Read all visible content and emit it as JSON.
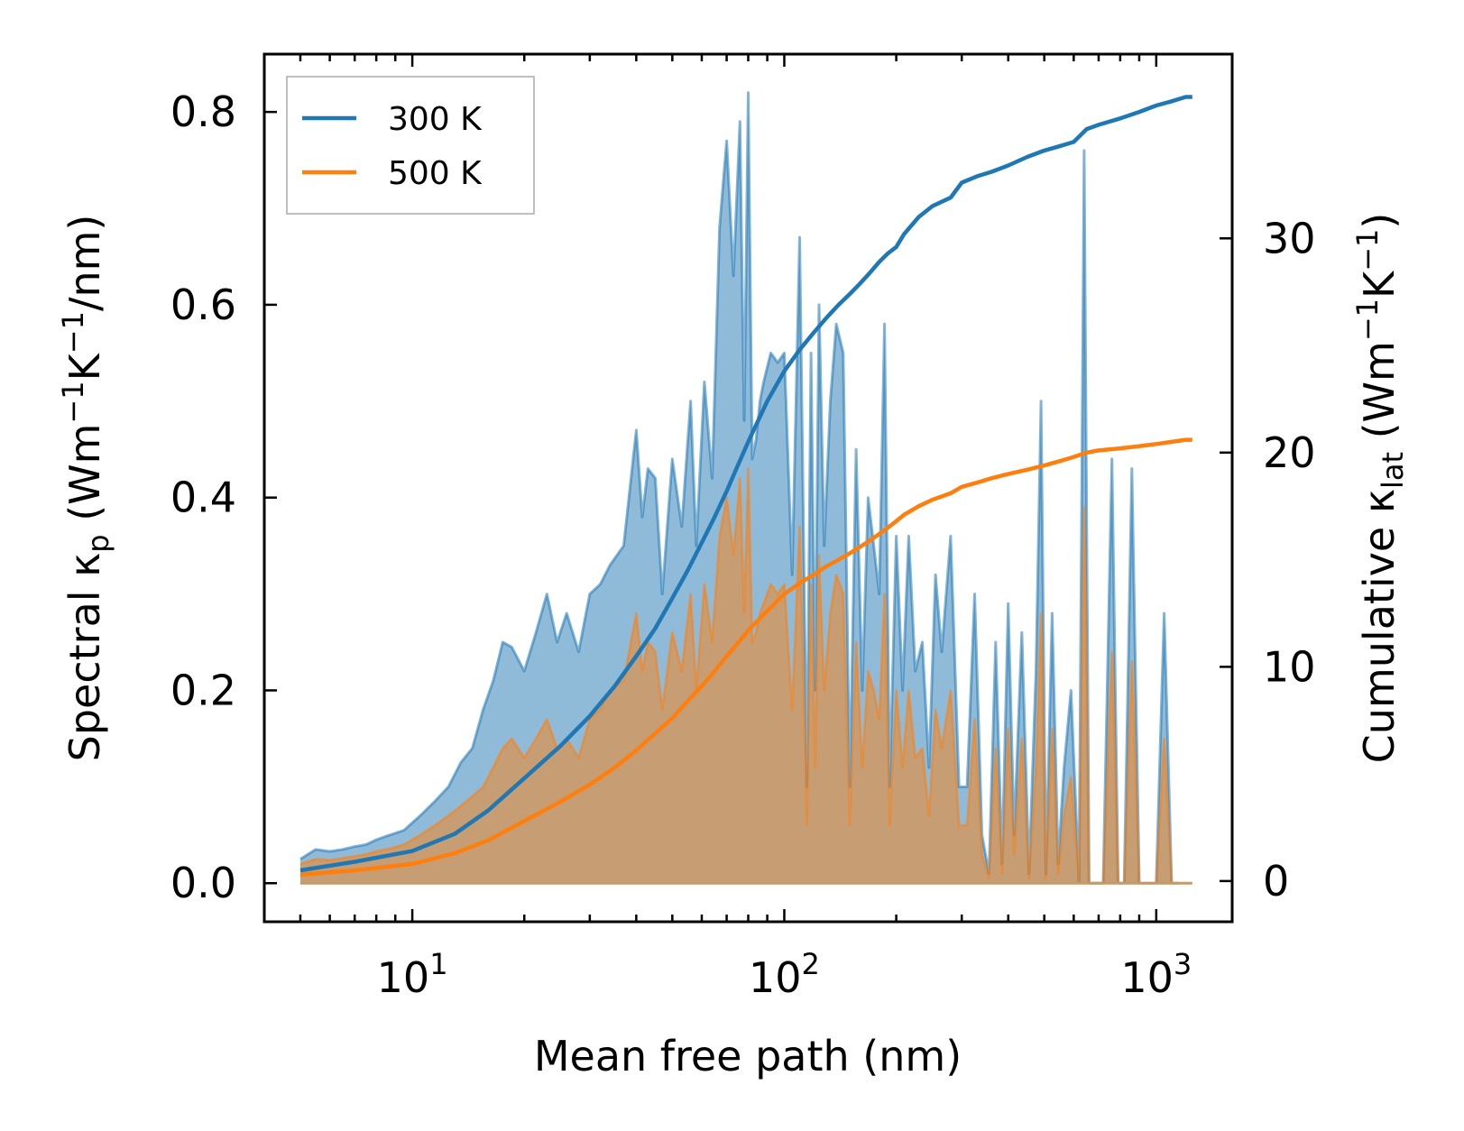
{
  "chart_data": {
    "type": "area+line",
    "xscale": "log",
    "xlabel": "Mean free path (nm)",
    "ylabel_left": "Spectral κ_p (Wm⁻¹K⁻¹/nm)",
    "ylabel_right": "Cumulative κ_lat (Wm⁻¹K⁻¹)",
    "xlim": [
      4.0,
      1600
    ],
    "ylim_left": [
      -0.04,
      0.86
    ],
    "ylim_right": [
      -1.9,
      38.6
    ],
    "x_ticks": [
      {
        "value": 10,
        "label": "10",
        "exp": "1"
      },
      {
        "value": 100,
        "label": "10",
        "exp": "2"
      },
      {
        "value": 1000,
        "label": "10",
        "exp": "3"
      }
    ],
    "y_ticks_left": [
      0.0,
      0.2,
      0.4,
      0.6,
      0.8
    ],
    "y_tick_labels_left": [
      "0.0",
      "0.2",
      "0.4",
      "0.6",
      "0.8"
    ],
    "y_ticks_right": [
      0,
      10,
      20,
      30
    ],
    "y_tick_labels_right": [
      "0",
      "10",
      "20",
      "30"
    ],
    "legend": {
      "position": "top-left",
      "entries": [
        "300 K",
        "500 K"
      ]
    },
    "colors": {
      "s300": "#1f77b4",
      "s500": "#ff7f0e",
      "fill300": "#1f77b4",
      "fill500": "#ff7f0e"
    },
    "spectral": {
      "x": [
        5.0,
        5.5,
        6.0,
        6.5,
        7.0,
        7.5,
        8.0,
        8.7,
        9.5,
        10.5,
        11.5,
        12.5,
        13.5,
        14.5,
        15.5,
        16.5,
        17.5,
        18.5,
        20.0,
        21.5,
        23.0,
        24.5,
        26.0,
        28.0,
        30.0,
        32.0,
        34.0,
        37.0,
        40.0,
        41.5,
        43.0,
        45.0,
        47.0,
        50.0,
        53.0,
        56.0,
        58.0,
        61.0,
        64.0,
        67.0,
        70.0,
        73.0,
        76.0,
        78.0,
        80.0,
        82.0,
        84.0,
        86.0,
        88.0,
        92.0,
        96.0,
        100.0,
        105.0,
        110.0,
        115.0,
        118.0,
        121.0,
        124.0,
        128.0,
        133.0,
        138.0,
        144.0,
        150.0,
        156.0,
        162.0,
        168.0,
        174.0,
        180.0,
        186.0,
        192.0,
        200.0,
        208.0,
        216.0,
        225.0,
        235.0,
        245.0,
        255.0,
        265.0,
        280.0,
        295.0,
        310.0,
        325.0,
        340.0,
        355.0,
        370.0,
        385.0,
        400.0,
        415.0,
        435.0,
        455.0,
        475.0,
        490.0,
        505.0,
        525.0,
        545.0,
        565.0,
        590.0,
        620.0,
        640.0,
        660.0,
        690.0,
        720.0,
        760.0,
        790.0,
        820.0,
        860.0,
        900.0,
        950.0,
        1000.0,
        1050.0,
        1100.0,
        1150.0,
        1200.0,
        1250.0
      ],
      "s300": [
        0.025,
        0.035,
        0.033,
        0.035,
        0.038,
        0.04,
        0.045,
        0.05,
        0.055,
        0.07,
        0.085,
        0.1,
        0.125,
        0.14,
        0.18,
        0.21,
        0.25,
        0.245,
        0.22,
        0.26,
        0.3,
        0.25,
        0.28,
        0.24,
        0.3,
        0.31,
        0.33,
        0.35,
        0.47,
        0.38,
        0.43,
        0.42,
        0.3,
        0.44,
        0.37,
        0.5,
        0.35,
        0.52,
        0.42,
        0.68,
        0.77,
        0.63,
        0.79,
        0.48,
        0.82,
        0.44,
        0.46,
        0.5,
        0.52,
        0.55,
        0.54,
        0.55,
        0.32,
        0.67,
        0.1,
        0.55,
        0.2,
        0.6,
        0.35,
        0.5,
        0.58,
        0.55,
        0.1,
        0.45,
        0.2,
        0.4,
        0.35,
        0.3,
        0.58,
        0.1,
        0.36,
        0.2,
        0.36,
        0.22,
        0.25,
        0.12,
        0.32,
        0.24,
        0.36,
        0.1,
        0.1,
        0.3,
        0.05,
        0.01,
        0.25,
        0.02,
        0.29,
        0.05,
        0.26,
        0.01,
        0.22,
        0.5,
        0.01,
        0.28,
        0.02,
        0.12,
        0.2,
        0.0,
        0.76,
        0.0,
        0.0,
        0.0,
        0.44,
        0.0,
        0.0,
        0.43,
        0.0,
        0.0,
        0.0,
        0.28,
        0.0,
        0.0
      ],
      "s500": [
        0.02,
        0.025,
        0.024,
        0.026,
        0.028,
        0.03,
        0.033,
        0.036,
        0.04,
        0.05,
        0.06,
        0.07,
        0.08,
        0.09,
        0.1,
        0.12,
        0.14,
        0.15,
        0.13,
        0.15,
        0.17,
        0.14,
        0.15,
        0.13,
        0.17,
        0.18,
        0.2,
        0.21,
        0.28,
        0.22,
        0.25,
        0.24,
        0.18,
        0.26,
        0.22,
        0.3,
        0.2,
        0.31,
        0.25,
        0.36,
        0.4,
        0.34,
        0.42,
        0.28,
        0.43,
        0.25,
        0.26,
        0.28,
        0.29,
        0.31,
        0.3,
        0.31,
        0.18,
        0.37,
        0.06,
        0.31,
        0.12,
        0.34,
        0.2,
        0.28,
        0.32,
        0.3,
        0.06,
        0.25,
        0.12,
        0.22,
        0.2,
        0.17,
        0.3,
        0.06,
        0.2,
        0.12,
        0.2,
        0.13,
        0.14,
        0.07,
        0.18,
        0.14,
        0.2,
        0.06,
        0.06,
        0.17,
        0.03,
        0.005,
        0.14,
        0.01,
        0.16,
        0.03,
        0.15,
        0.005,
        0.12,
        0.28,
        0.005,
        0.16,
        0.01,
        0.07,
        0.11,
        0.0,
        0.39,
        0.0,
        0.0,
        0.0,
        0.24,
        0.0,
        0.0,
        0.23,
        0.0,
        0.0,
        0.0,
        0.15,
        0.0,
        0.0
      ]
    },
    "cumulative": {
      "x": [
        5.0,
        7.0,
        10.0,
        13.0,
        16.0,
        20.0,
        25.0,
        30.0,
        35.0,
        40.0,
        45.0,
        50.0,
        55.0,
        60.0,
        65.0,
        70.0,
        75.0,
        80.0,
        90.0,
        100.0,
        110.0,
        120.0,
        130.0,
        140.0,
        150.0,
        160.0,
        170.0,
        180.0,
        190.0,
        200.0,
        210.0,
        230.0,
        250.0,
        280.0,
        300.0,
        330.0,
        360.0,
        400.0,
        450.0,
        500.0,
        550.0,
        600.0,
        650.0,
        700.0,
        800.0,
        900.0,
        1000.0,
        1100.0,
        1200.0,
        1250.0
      ],
      "c300": [
        0.5,
        0.9,
        1.4,
        2.2,
        3.3,
        4.8,
        6.3,
        7.7,
        9.1,
        10.5,
        11.8,
        13.2,
        14.5,
        15.8,
        17.0,
        18.2,
        19.4,
        20.5,
        22.4,
        23.8,
        24.8,
        25.6,
        26.3,
        26.9,
        27.4,
        27.9,
        28.4,
        28.9,
        29.3,
        29.6,
        30.2,
        31.0,
        31.5,
        31.9,
        32.6,
        32.9,
        33.1,
        33.4,
        33.8,
        34.1,
        34.3,
        34.5,
        35.1,
        35.3,
        35.6,
        35.9,
        36.2,
        36.4,
        36.6,
        36.6
      ],
      "c500": [
        0.3,
        0.5,
        0.8,
        1.3,
        1.9,
        2.8,
        3.7,
        4.5,
        5.3,
        6.1,
        6.9,
        7.6,
        8.4,
        9.1,
        9.8,
        10.5,
        11.1,
        11.7,
        12.6,
        13.4,
        13.9,
        14.3,
        14.7,
        15.0,
        15.3,
        15.6,
        15.9,
        16.2,
        16.5,
        16.8,
        17.1,
        17.5,
        17.8,
        18.1,
        18.4,
        18.6,
        18.8,
        19.0,
        19.2,
        19.4,
        19.6,
        19.8,
        20.0,
        20.1,
        20.2,
        20.3,
        20.4,
        20.5,
        20.6,
        20.6
      ]
    }
  }
}
